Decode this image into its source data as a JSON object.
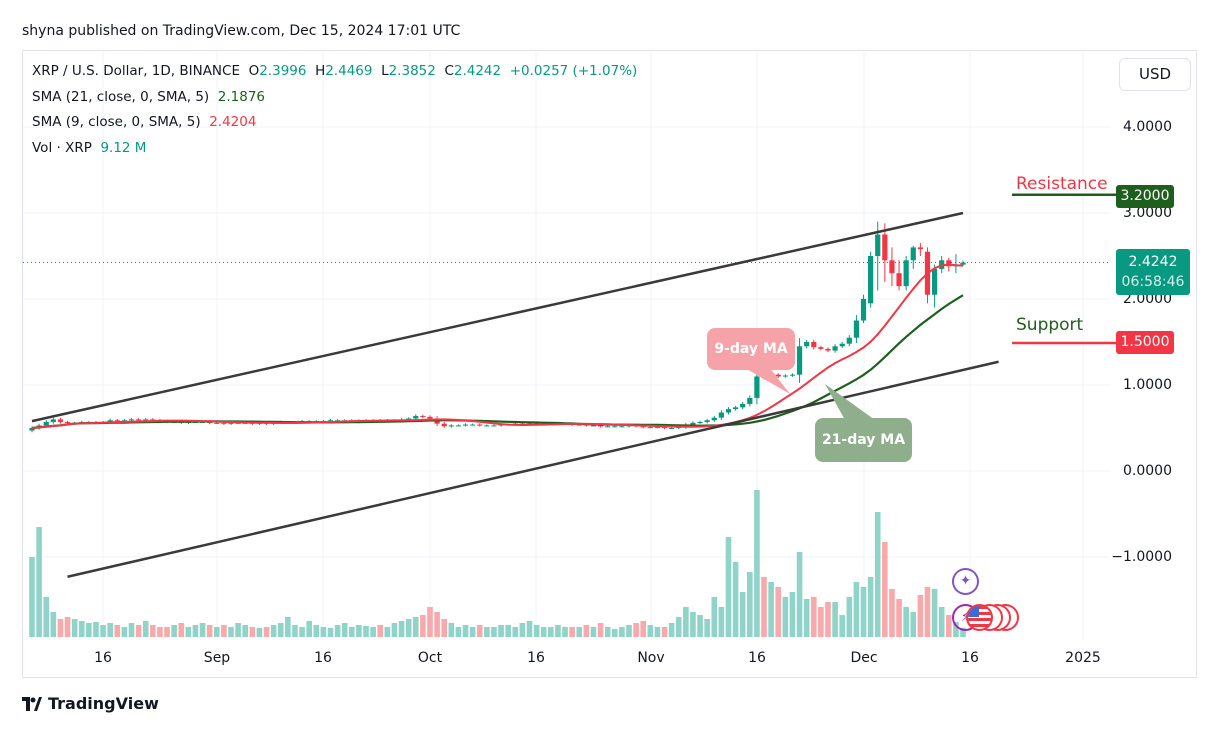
{
  "header": {
    "published": "shyna published on TradingView.com, Dec 15, 2024 17:01 UTC"
  },
  "legend": {
    "symbol": "XRP / U.S. Dollar, 1D, BINANCE",
    "o_label": "O",
    "open": "2.3996",
    "h_label": "H",
    "high": "2.4469",
    "l_label": "L",
    "low": "2.3852",
    "c_label": "C",
    "close": "2.4242",
    "change": "+0.0257 (+1.07%)",
    "sma21_label": "SMA (21, close, 0, SMA, 5)",
    "sma21_value": "2.1876",
    "sma9_label": "SMA (9, close, 0, SMA, 5)",
    "sma9_value": "2.4204",
    "vol_label": "Vol · XRP",
    "vol_value": "9.12 M"
  },
  "currency_button": "USD",
  "price_axis": {
    "ticks": [
      "4.0000",
      "3.0000",
      "2.0000",
      "1.0000",
      "0.0000",
      "−1.0000"
    ],
    "tick_values": [
      4,
      3,
      2,
      1,
      0,
      -1
    ]
  },
  "time_axis": {
    "ticks": [
      "16",
      "Sep",
      "16",
      "Oct",
      "16",
      "Nov",
      "16",
      "Dec",
      "16",
      "2025"
    ],
    "tick_dates": [
      "2024-08-16",
      "2024-09-01",
      "2024-09-16",
      "2024-10-01",
      "2024-10-16",
      "2024-11-01",
      "2024-11-16",
      "2024-12-01",
      "2024-12-16",
      "2025-01-01"
    ]
  },
  "price_labels": {
    "current": "2.4242",
    "countdown": "06:58:46",
    "resistance": "3.2000",
    "support": "1.5000"
  },
  "annotations": {
    "resistance": "Resistance",
    "support": "Support",
    "ma9": "9-day MA",
    "ma21": "21-day MA"
  },
  "colors": {
    "up": "#089981",
    "down": "#f23645",
    "vol_up": "#8fd3c9",
    "vol_down": "#f7a9ab",
    "sma9": "#f23645",
    "sma21": "#1e5f1e",
    "resistance_line": "#1e5f1e",
    "support_line": "#f23645",
    "current_label": "#089981",
    "ma9_bubble": "#f5a3a8",
    "ma21_bubble": "#8fae8c"
  },
  "branding": "TradingView",
  "chart_data": {
    "type": "candlestick",
    "date_range": [
      "2024-08-06",
      "2024-12-15"
    ],
    "ylim": [
      -1.6,
      4.3
    ],
    "grid": true,
    "close": [
      0.5,
      0.53,
      0.57,
      0.6,
      0.57,
      0.56,
      0.56,
      0.57,
      0.57,
      0.57,
      0.57,
      0.59,
      0.58,
      0.59,
      0.6,
      0.59,
      0.6,
      0.59,
      0.58,
      0.57,
      0.57,
      0.56,
      0.57,
      0.57,
      0.57,
      0.56,
      0.56,
      0.55,
      0.56,
      0.56,
      0.56,
      0.55,
      0.56,
      0.55,
      0.56,
      0.57,
      0.57,
      0.57,
      0.58,
      0.58,
      0.58,
      0.58,
      0.59,
      0.59,
      0.59,
      0.59,
      0.59,
      0.59,
      0.59,
      0.58,
      0.59,
      0.59,
      0.6,
      0.61,
      0.64,
      0.63,
      0.61,
      0.55,
      0.52,
      0.53,
      0.53,
      0.54,
      0.54,
      0.53,
      0.53,
      0.53,
      0.54,
      0.54,
      0.55,
      0.55,
      0.55,
      0.55,
      0.55,
      0.55,
      0.55,
      0.55,
      0.54,
      0.54,
      0.53,
      0.53,
      0.52,
      0.52,
      0.52,
      0.52,
      0.53,
      0.52,
      0.51,
      0.51,
      0.51,
      0.5,
      0.5,
      0.51,
      0.54,
      0.56,
      0.57,
      0.59,
      0.62,
      0.68,
      0.72,
      0.74,
      0.78,
      0.85,
      1.1,
      1.08,
      1.12,
      1.1,
      1.11,
      1.12,
      1.45,
      1.5,
      1.44,
      1.42,
      1.4,
      1.45,
      1.48,
      1.55,
      1.75,
      2.0,
      2.5,
      2.75,
      2.45,
      2.3,
      2.15,
      2.45,
      2.6,
      2.58,
      2.05,
      2.35,
      2.45,
      2.38,
      2.4,
      2.4242
    ],
    "december_ohlc": [
      [
        1.75,
        2.05,
        1.72,
        2.0
      ],
      [
        1.95,
        2.55,
        1.9,
        2.5
      ],
      [
        2.5,
        2.9,
        2.1,
        2.75
      ],
      [
        2.75,
        2.88,
        2.2,
        2.45
      ],
      [
        2.45,
        2.6,
        2.15,
        2.3
      ],
      [
        2.3,
        2.45,
        2.1,
        2.15
      ],
      [
        2.15,
        2.5,
        2.1,
        2.45
      ],
      [
        2.45,
        2.62,
        2.35,
        2.6
      ],
      [
        2.6,
        2.65,
        2.5,
        2.58
      ],
      [
        2.55,
        2.6,
        1.95,
        2.05
      ],
      [
        2.05,
        2.4,
        1.9,
        2.35
      ],
      [
        2.35,
        2.5,
        2.3,
        2.45
      ],
      [
        2.45,
        2.48,
        2.32,
        2.38
      ],
      [
        2.38,
        2.52,
        2.3,
        2.4
      ],
      [
        2.3996,
        2.4469,
        2.3852,
        2.4242
      ]
    ],
    "volume_millions": [
      80,
      110,
      40,
      25,
      18,
      20,
      18,
      16,
      14,
      15,
      12,
      14,
      12,
      10,
      14,
      12,
      16,
      12,
      10,
      10,
      12,
      14,
      10,
      12,
      14,
      12,
      10,
      12,
      10,
      14,
      12,
      10,
      9,
      10,
      12,
      14,
      20,
      12,
      10,
      16,
      12,
      10,
      9,
      12,
      14,
      10,
      12,
      11,
      10,
      12,
      10,
      14,
      16,
      18,
      20,
      22,
      30,
      25,
      18,
      14,
      10,
      12,
      10,
      12,
      10,
      10,
      12,
      12,
      10,
      14,
      16,
      12,
      10,
      10,
      12,
      10,
      10,
      10,
      12,
      10,
      14,
      10,
      8,
      10,
      12,
      14,
      16,
      12,
      10,
      10,
      14,
      20,
      30,
      25,
      22,
      18,
      40,
      30,
      100,
      75,
      45,
      65,
      147,
      60,
      55,
      50,
      40,
      45,
      85,
      38,
      40,
      30,
      35,
      35,
      22,
      40,
      55,
      50,
      60,
      125,
      95,
      48,
      38,
      30,
      25,
      42,
      50,
      48,
      30,
      22,
      15,
      9.12
    ],
    "trendlines": [
      {
        "from": [
          "2024-08-06",
          0.58
        ],
        "to": [
          "2024-12-15",
          3.0
        ]
      },
      {
        "from": [
          "2024-08-11",
          -1.23
        ],
        "to": [
          "2024-12-20",
          1.27
        ]
      }
    ],
    "horizontal_levels": {
      "resistance": 3.2,
      "support": 1.5,
      "current": 2.4242
    }
  }
}
